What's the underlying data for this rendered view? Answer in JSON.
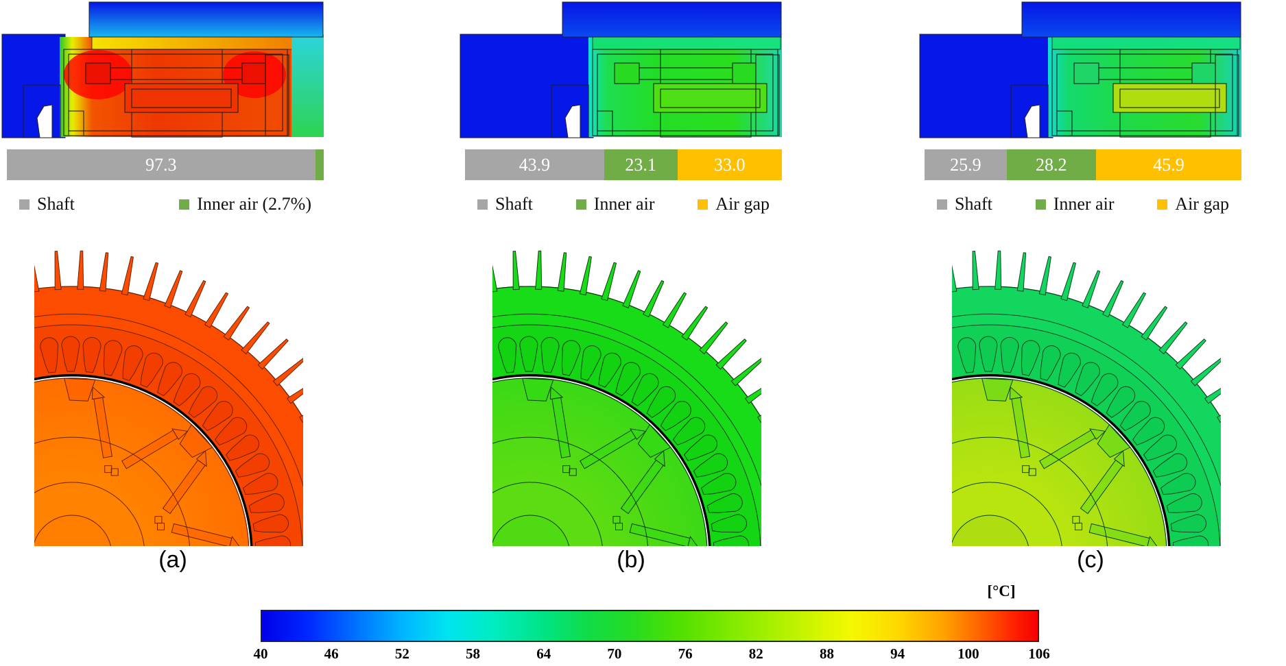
{
  "figure": {
    "panels": [
      {
        "label": "(a)",
        "bar": {
          "segments": [
            {
              "name": "Shaft",
              "value": 97.3,
              "label": "97.3",
              "color": "#a6a6a6"
            },
            {
              "name": "Inner air",
              "value": 2.7,
              "label": "",
              "color": "#70ad47"
            }
          ]
        },
        "legend": [
          {
            "label": "Shaft",
            "color": "#a6a6a6"
          },
          {
            "label": "Inner air (2.7%)",
            "color": "#70ad47"
          }
        ],
        "contour": {
          "geom": {
            "top_x": 128,
            "block_w": 88,
            "body_x": 85,
            "body_w": 338
          },
          "sky": [
            "#0616e6",
            "#18b8ee"
          ],
          "block": "#0518e8",
          "band": [
            "#f6e200",
            "#f07000"
          ],
          "body_stops": [
            [
              0,
              "#28c828"
            ],
            [
              0.055,
              "#e8ee00"
            ],
            [
              0.14,
              "#f25400"
            ],
            [
              0.42,
              "#ee3800"
            ],
            [
              0.9,
              "#f04a00"
            ],
            [
              1,
              "#ef4800"
            ]
          ],
          "right": [
            "#2cd4dc",
            "#2ed352"
          ],
          "core": "#f03400",
          "pad": "#ec1000",
          "glow": "#ff0000",
          "glow_op": 0.8
        },
        "wheel": {
          "stator": "#fb4c00",
          "yoke": "#f64500",
          "slot": "#f23e00",
          "rotor_out": "#ff6f00",
          "rotor_in": "#ff8200",
          "pocket": "#ff5c00",
          "hub": "#ff7e00",
          "stroke": "#6b2408"
        }
      },
      {
        "label": "(b)",
        "bar": {
          "segments": [
            {
              "name": "Shaft",
              "value": 43.9,
              "label": "43.9",
              "color": "#a6a6a6"
            },
            {
              "name": "Inner air",
              "value": 23.1,
              "label": "23.1",
              "color": "#70ad47"
            },
            {
              "name": "Air gap",
              "value": 33.0,
              "label": "33.0",
              "color": "#ffc000"
            }
          ]
        },
        "legend": [
          {
            "label": "Shaft",
            "color": "#a6a6a6"
          },
          {
            "label": "Inner air",
            "color": "#70ad47"
          },
          {
            "label": "Air gap",
            "color": "#ffc000"
          }
        ],
        "contour": {
          "geom": {
            "top_x": 150,
            "block_w": 190,
            "body_x": 188,
            "body_w": 282
          },
          "sky": [
            "#0616e6",
            "#0a4af0"
          ],
          "block": "#0518e8",
          "band": [
            "#14e070",
            "#18e27e"
          ],
          "body_stops": [
            [
              0,
              "#10e2d0"
            ],
            [
              0.09,
              "#1ede52"
            ],
            [
              0.35,
              "#22dd26"
            ],
            [
              0.75,
              "#2ade1e"
            ],
            [
              1,
              "#1ed8a8"
            ]
          ],
          "right": null,
          "core": "#4edf14",
          "pad": "#28da20",
          "glow": "#ff0000",
          "glow_op": 0
        },
        "wheel": {
          "stator": "#17dc17",
          "yoke": "#14d614",
          "slot": "#12d212",
          "rotor_out": "#3bd916",
          "rotor_in": "#5cdc12",
          "pocket": "#2eda14",
          "hub": "#50da14",
          "stroke": "#0e3e0e"
        }
      },
      {
        "label": "(c)",
        "bar": {
          "segments": [
            {
              "name": "Shaft",
              "value": 25.9,
              "label": "25.9",
              "color": "#a6a6a6"
            },
            {
              "name": "Inner air",
              "value": 28.2,
              "label": "28.2",
              "color": "#70ad47"
            },
            {
              "name": "Air gap",
              "value": 45.9,
              "label": "45.9",
              "color": "#ffc000"
            }
          ]
        },
        "legend": [
          {
            "label": "Shaft",
            "color": "#a6a6a6"
          },
          {
            "label": "Inner air",
            "color": "#70ad47"
          },
          {
            "label": "Air gap",
            "color": "#ffc000"
          }
        ],
        "contour": {
          "geom": {
            "top_x": 150,
            "block_w": 190,
            "body_x": 188,
            "body_w": 282
          },
          "sky": [
            "#0616e6",
            "#0a4af0"
          ],
          "block": "#0518e8",
          "band": [
            "#12de7c",
            "#16e082"
          ],
          "body_stops": [
            [
              0,
              "#10dcd4"
            ],
            [
              0.1,
              "#14da6e"
            ],
            [
              0.4,
              "#1eda46"
            ],
            [
              0.78,
              "#28dc2e"
            ],
            [
              1,
              "#18d2c0"
            ]
          ],
          "right": null,
          "core": "#aede10",
          "pad": "#1ed668",
          "glow": "#ff0000",
          "glow_op": 0
        },
        "wheel": {
          "stator": "#12d65e",
          "yoke": "#10d056",
          "slot": "#0ecb52",
          "rotor_out": "#98dd14",
          "rotor_in": "#b8e410",
          "pocket": "#5eda18",
          "hub": "#aede12",
          "stroke": "#0c4424"
        }
      }
    ],
    "colorbar": {
      "unit_label": "[°C]",
      "ticks": [
        "40",
        "46",
        "52",
        "58",
        "64",
        "70",
        "76",
        "82",
        "88",
        "94",
        "100",
        "106"
      ],
      "range": [
        40,
        106
      ],
      "stops": [
        [
          0,
          "#0000e8"
        ],
        [
          0.06,
          "#0028ff"
        ],
        [
          0.12,
          "#0070ff"
        ],
        [
          0.18,
          "#00b4ff"
        ],
        [
          0.24,
          "#00e4f0"
        ],
        [
          0.3,
          "#00ecc0"
        ],
        [
          0.36,
          "#00e488"
        ],
        [
          0.42,
          "#10dc48"
        ],
        [
          0.48,
          "#28dc20"
        ],
        [
          0.54,
          "#52e000"
        ],
        [
          0.62,
          "#8cec00"
        ],
        [
          0.7,
          "#c8f400"
        ],
        [
          0.76,
          "#f4f800"
        ],
        [
          0.82,
          "#ffd800"
        ],
        [
          0.88,
          "#ffa000"
        ],
        [
          0.93,
          "#ff5c00"
        ],
        [
          0.97,
          "#ff2000"
        ],
        [
          1,
          "#f40000"
        ]
      ]
    }
  },
  "chart_data": [
    {
      "type": "bar",
      "variant": "stacked-horizontal-100pct",
      "categories": [
        "(a)",
        "(b)",
        "(c)"
      ],
      "series": [
        {
          "name": "Shaft",
          "color": "#a6a6a6",
          "values": [
            97.3,
            43.9,
            25.9
          ]
        },
        {
          "name": "Inner air",
          "color": "#70ad47",
          "values": [
            2.7,
            23.1,
            28.2
          ]
        },
        {
          "name": "Air gap",
          "color": "#ffc000",
          "values": [
            0,
            33.0,
            45.9
          ]
        }
      ],
      "xlim": [
        0,
        100
      ],
      "legend_position": "below each bar",
      "notes": "Panel (a) shows no Air gap segment; its legend reads 'Inner air (2.7%)'. Values are printed in white inside each segment."
    },
    {
      "type": "heatmap",
      "role": "temperature-colorbar",
      "title": "[°C]",
      "ticks": [
        40,
        46,
        52,
        58,
        64,
        70,
        76,
        82,
        88,
        94,
        100,
        106
      ],
      "range": [
        40,
        106
      ],
      "scale": "jet: blue -> cyan -> green -> yellow -> orange -> red"
    }
  ]
}
